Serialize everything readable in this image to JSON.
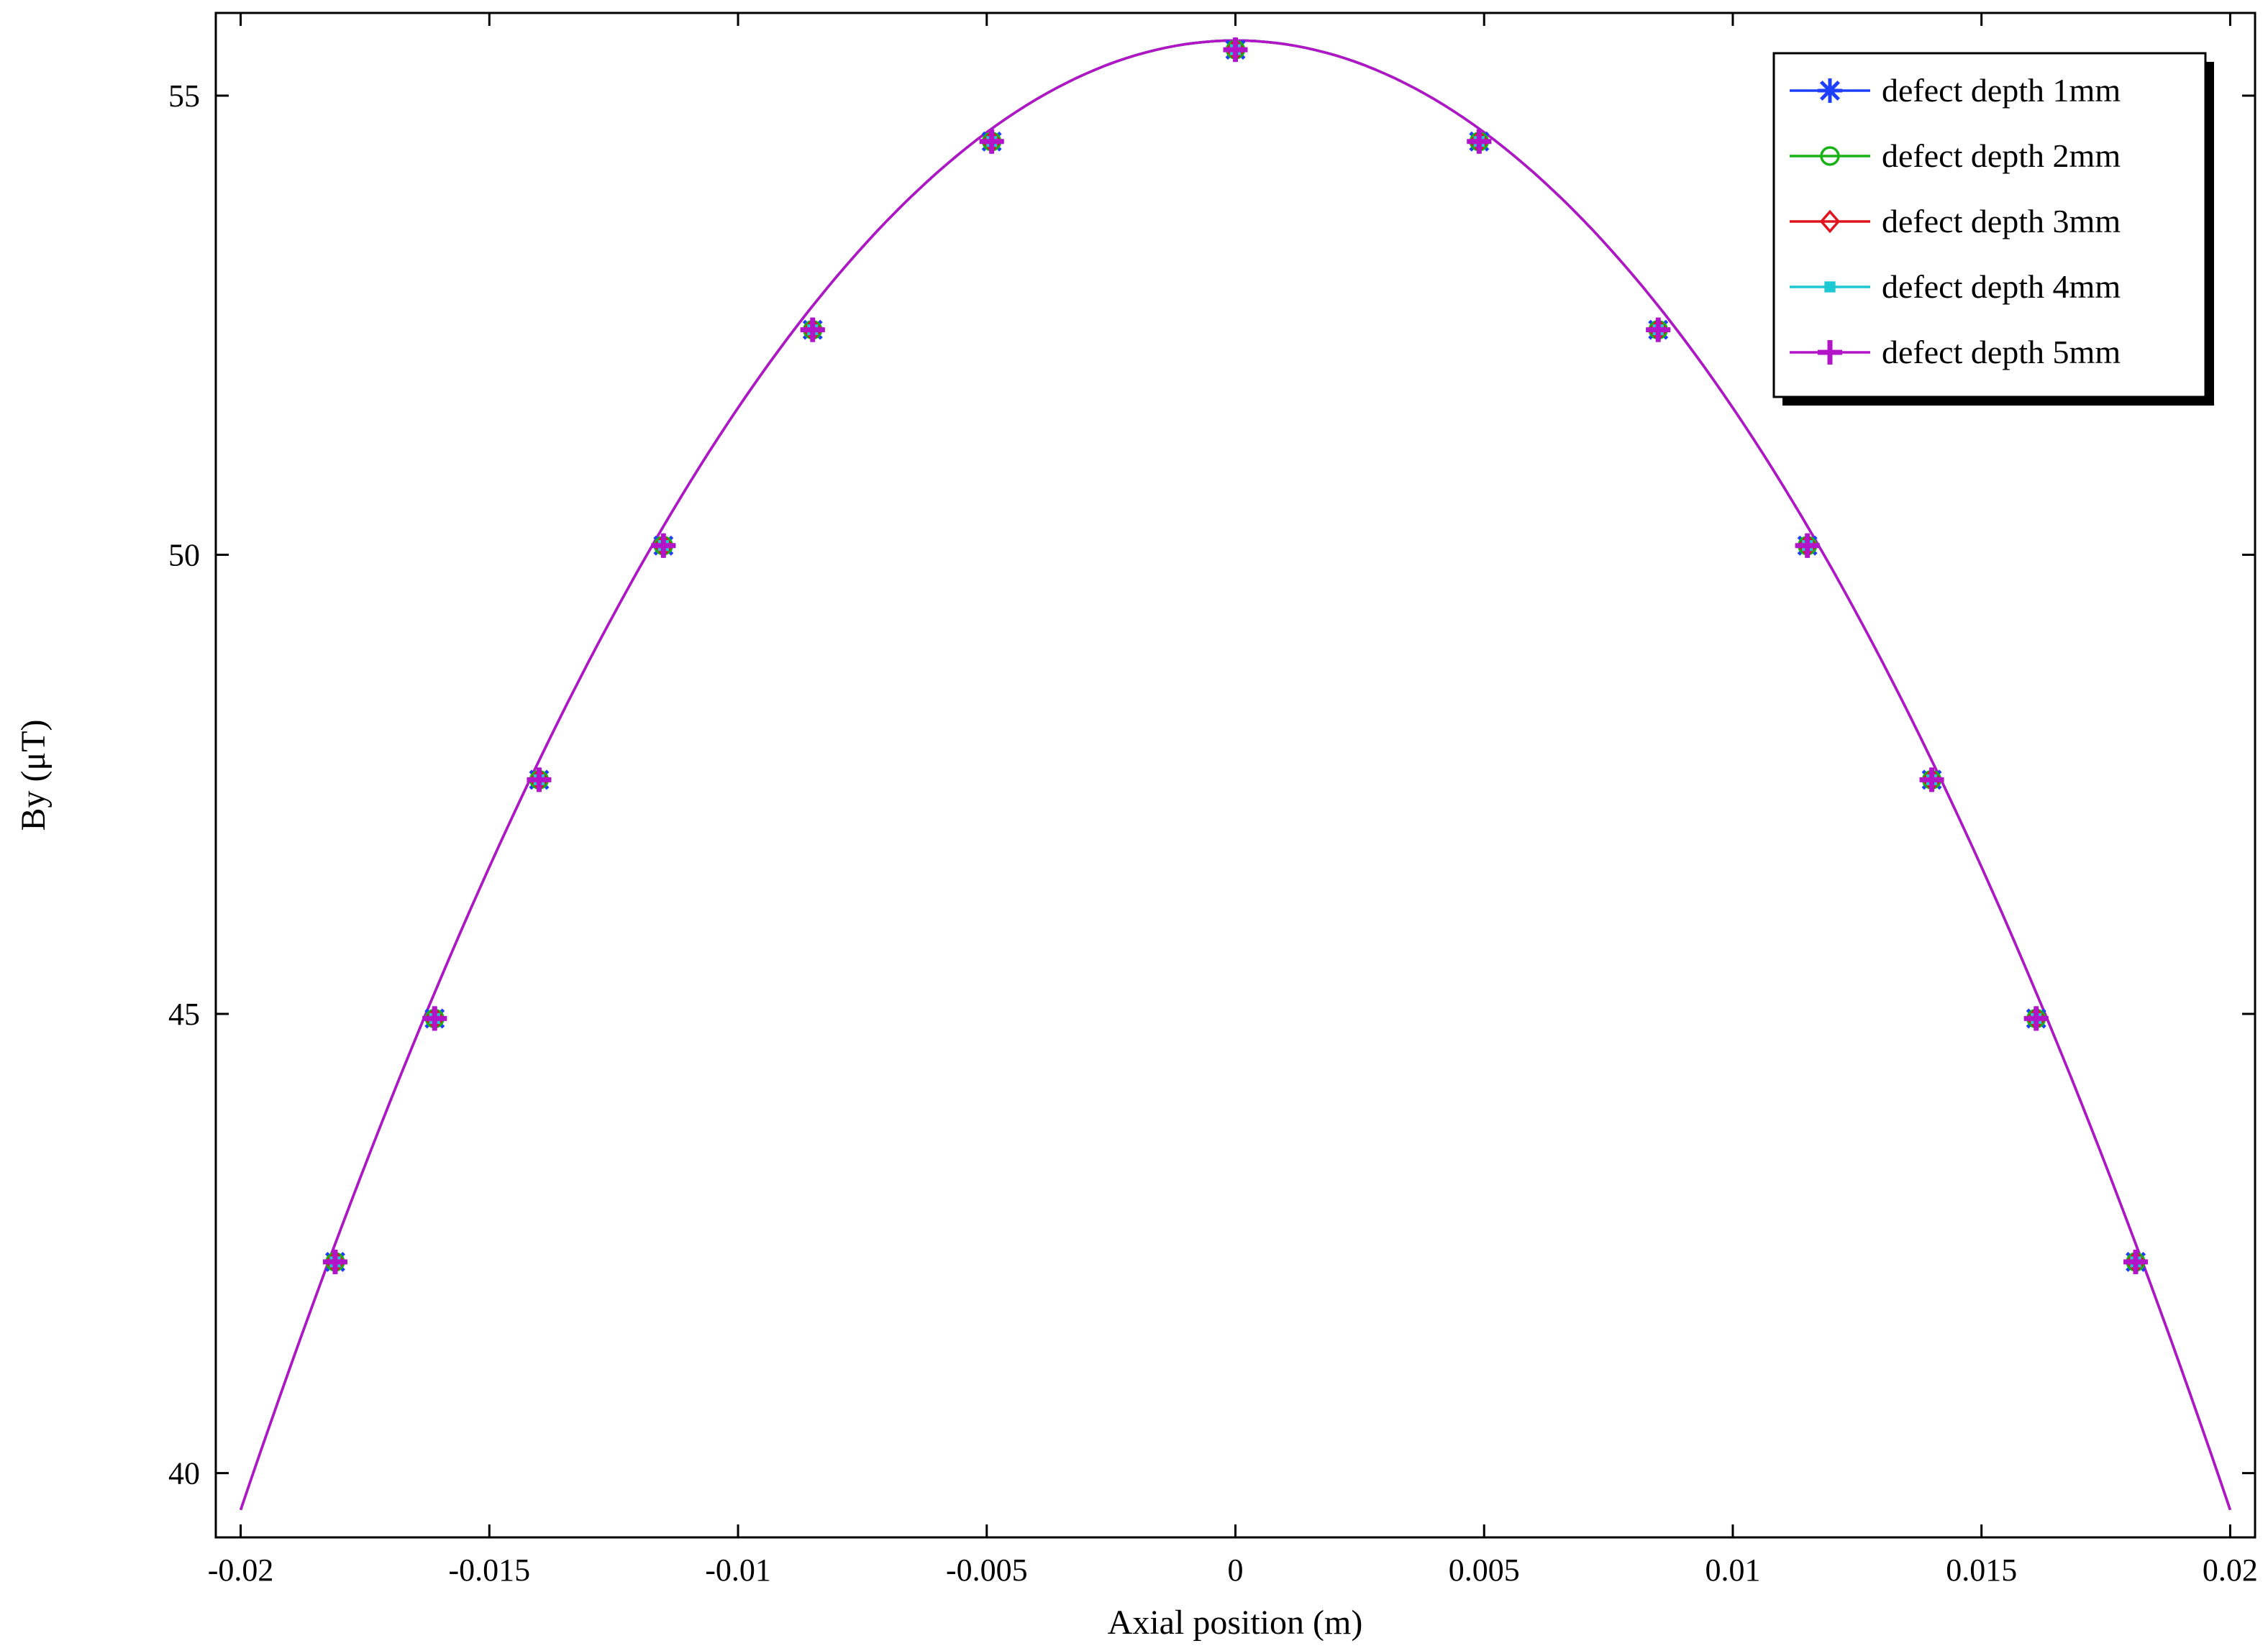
{
  "chart_data": {
    "type": "line",
    "title": "",
    "xlabel": "Axial position (m)",
    "ylabel": "By (μT)",
    "xlim": [
      -0.0205,
      0.0205
    ],
    "ylim": [
      39.3,
      55.9
    ],
    "xticks": [
      -0.02,
      -0.015,
      -0.01,
      -0.005,
      0,
      0.005,
      0.01,
      0.015,
      0.02
    ],
    "xtick_labels": [
      "-0.02",
      "-0.015",
      "-0.01",
      "-0.005",
      "0",
      "0.005",
      "0.01",
      "0.015",
      "0.02"
    ],
    "yticks": [
      40,
      45,
      50,
      55
    ],
    "ytick_labels": [
      "40",
      "45",
      "50",
      "55"
    ],
    "grid": false,
    "legend_position": "top-right",
    "curve": {
      "x": [
        -0.02,
        -0.019,
        -0.018,
        -0.017,
        -0.016,
        -0.015,
        -0.014,
        -0.013,
        -0.012,
        -0.011,
        -0.01,
        -0.009,
        -0.008,
        -0.007,
        -0.006,
        -0.005,
        -0.004,
        -0.003,
        -0.002,
        -0.001,
        0,
        0.001,
        0.002,
        0.003,
        0.004,
        0.005,
        0.006,
        0.007,
        0.008,
        0.009,
        0.01,
        0.011,
        0.012,
        0.013,
        0.014,
        0.015,
        0.016,
        0.017,
        0.018,
        0.019,
        0.02
      ],
      "y": [
        39.6,
        40.98,
        42.36,
        43.7,
        45.01,
        46.26,
        47.47,
        48.62,
        49.7,
        50.71,
        51.65,
        52.51,
        53.3,
        53.99,
        54.59,
        55.1,
        55.5,
        55.81,
        56.01,
        55.9,
        55.52,
        55.45,
        55.3,
        55.09,
        54.82,
        54.5,
        54.1,
        53.6,
        53.0,
        52.28,
        51.46,
        50.54,
        49.53,
        48.44,
        47.27,
        46.03,
        44.73,
        43.38,
        41.99,
        40.6,
        39.6
      ]
    },
    "series": [
      {
        "name": "defect depth 1mm",
        "color": "#1f3fff",
        "marker": "asterisk",
        "x": [
          -0.0181,
          -0.0161,
          -0.014,
          -0.0115,
          -0.0085,
          -0.0049,
          0,
          0.0049,
          0.0085,
          0.0115,
          0.014,
          0.0161,
          0.0181
        ],
        "y": [
          42.3,
          44.95,
          47.55,
          50.1,
          52.45,
          54.5,
          55.5,
          54.5,
          52.45,
          50.1,
          47.55,
          44.95,
          42.3
        ]
      },
      {
        "name": "defect depth 2mm",
        "color": "#16b216",
        "marker": "circle",
        "x": [
          -0.0181,
          -0.0161,
          -0.014,
          -0.0115,
          -0.0085,
          -0.0049,
          0,
          0.0049,
          0.0085,
          0.0115,
          0.014,
          0.0161,
          0.0181
        ],
        "y": [
          42.3,
          44.95,
          47.55,
          50.1,
          52.45,
          54.5,
          55.5,
          54.5,
          52.45,
          50.1,
          47.55,
          44.95,
          42.3
        ]
      },
      {
        "name": "defect depth 3mm",
        "color": "#e0141e",
        "marker": "diamond",
        "x": [
          -0.0181,
          -0.0161,
          -0.014,
          -0.0115,
          -0.0085,
          -0.0049,
          0,
          0.0049,
          0.0085,
          0.0115,
          0.014,
          0.0161,
          0.0181
        ],
        "y": [
          42.3,
          44.95,
          47.55,
          50.1,
          52.45,
          54.5,
          55.5,
          54.5,
          52.45,
          50.1,
          47.55,
          44.95,
          42.3
        ]
      },
      {
        "name": "defect depth 4mm",
        "color": "#1ec8d2",
        "marker": "square",
        "x": [
          -0.0181,
          -0.0161,
          -0.014,
          -0.0115,
          -0.0085,
          -0.0049,
          0,
          0.0049,
          0.0085,
          0.0115,
          0.014,
          0.0161,
          0.0181
        ],
        "y": [
          42.3,
          44.95,
          47.55,
          50.1,
          52.45,
          54.5,
          55.5,
          54.5,
          52.45,
          50.1,
          47.55,
          44.95,
          42.3
        ]
      },
      {
        "name": "defect depth 5mm",
        "color": "#b414c8",
        "marker": "plus",
        "x": [
          -0.0181,
          -0.0161,
          -0.014,
          -0.0115,
          -0.0085,
          -0.0049,
          0,
          0.0049,
          0.0085,
          0.0115,
          0.014,
          0.0161,
          0.0181
        ],
        "y": [
          42.3,
          44.95,
          47.55,
          50.1,
          52.45,
          54.5,
          55.5,
          54.5,
          52.45,
          50.1,
          47.55,
          44.95,
          42.3
        ]
      }
    ]
  }
}
